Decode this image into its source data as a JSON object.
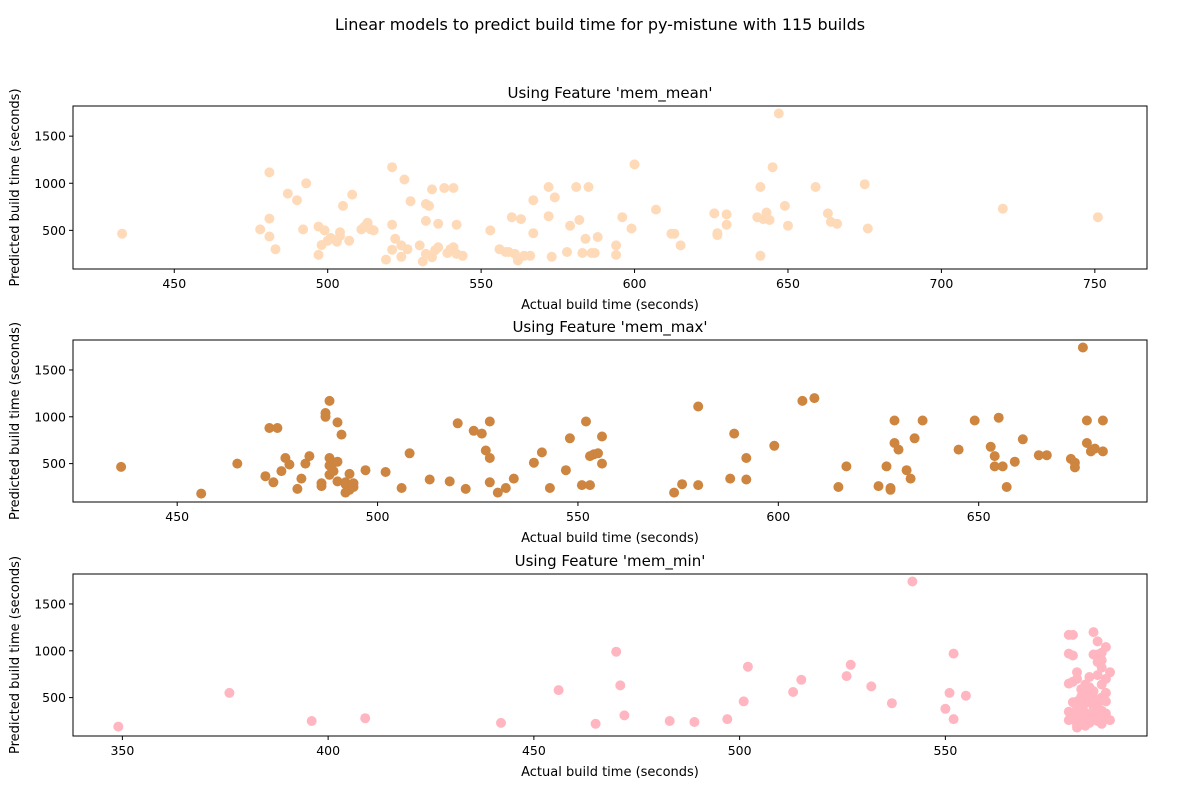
{
  "figure": {
    "title": "Linear models to predict build time for py-mistune with 115 builds"
  },
  "chart_data": [
    {
      "type": "scatter",
      "title": "Using Feature 'mem_mean'",
      "xlabel": "Actual build time (seconds)",
      "ylabel": "Predicted build time (seconds)",
      "color": "#ffdab9",
      "xlim": [
        417,
        767
      ],
      "ylim": [
        90,
        1820
      ],
      "xticks": [
        450,
        500,
        550,
        600,
        650,
        700,
        750
      ],
      "yticks": [
        500,
        1000,
        1500
      ],
      "points": [
        [
          433,
          465
        ],
        [
          478,
          510
        ],
        [
          481,
          1115
        ],
        [
          481,
          625
        ],
        [
          481,
          435
        ],
        [
          483,
          300
        ],
        [
          487,
          890
        ],
        [
          490,
          820
        ],
        [
          492,
          510
        ],
        [
          493,
          1000
        ],
        [
          497,
          240
        ],
        [
          497,
          540
        ],
        [
          498,
          345
        ],
        [
          499,
          500
        ],
        [
          500,
          390
        ],
        [
          501,
          420
        ],
        [
          503,
          380
        ],
        [
          504,
          480
        ],
        [
          504,
          440
        ],
        [
          505,
          760
        ],
        [
          507,
          390
        ],
        [
          508,
          880
        ],
        [
          511,
          510
        ],
        [
          512,
          540
        ],
        [
          513,
          580
        ],
        [
          514,
          510
        ],
        [
          515,
          500
        ],
        [
          519,
          190
        ],
        [
          521,
          1170
        ],
        [
          521,
          295
        ],
        [
          521,
          560
        ],
        [
          522,
          410
        ],
        [
          524,
          220
        ],
        [
          524,
          340
        ],
        [
          525,
          1040
        ],
        [
          526,
          300
        ],
        [
          527,
          810
        ],
        [
          530,
          340
        ],
        [
          531,
          170
        ],
        [
          532,
          250
        ],
        [
          532,
          780
        ],
        [
          532,
          600
        ],
        [
          533,
          760
        ],
        [
          534,
          215
        ],
        [
          534,
          935
        ],
        [
          535,
          290
        ],
        [
          536,
          570
        ],
        [
          536,
          320
        ],
        [
          538,
          950
        ],
        [
          539,
          260
        ],
        [
          540,
          300
        ],
        [
          541,
          320
        ],
        [
          541,
          950
        ],
        [
          542,
          560
        ],
        [
          542,
          250
        ],
        [
          544,
          230
        ],
        [
          553,
          500
        ],
        [
          556,
          300
        ],
        [
          558,
          270
        ],
        [
          559,
          270
        ],
        [
          560,
          640
        ],
        [
          561,
          250
        ],
        [
          562,
          180
        ],
        [
          563,
          620
        ],
        [
          564,
          230
        ],
        [
          566,
          230
        ],
        [
          567,
          470
        ],
        [
          567,
          820
        ],
        [
          572,
          650
        ],
        [
          572,
          960
        ],
        [
          573,
          220
        ],
        [
          574,
          850
        ],
        [
          578,
          270
        ],
        [
          579,
          550
        ],
        [
          581,
          960
        ],
        [
          582,
          610
        ],
        [
          583,
          260
        ],
        [
          584,
          410
        ],
        [
          585,
          960
        ],
        [
          586,
          260
        ],
        [
          587,
          260
        ],
        [
          588,
          430
        ],
        [
          594,
          340
        ],
        [
          594,
          240
        ],
        [
          596,
          640
        ],
        [
          599,
          520
        ],
        [
          600,
          1200
        ],
        [
          607,
          720
        ],
        [
          612,
          465
        ],
        [
          613,
          465
        ],
        [
          615,
          340
        ],
        [
          626,
          680
        ],
        [
          627,
          470
        ],
        [
          627,
          450
        ],
        [
          630,
          560
        ],
        [
          630,
          670
        ],
        [
          640,
          640
        ],
        [
          641,
          960
        ],
        [
          641,
          230
        ],
        [
          642,
          620
        ],
        [
          643,
          690
        ],
        [
          644,
          610
        ],
        [
          645,
          1170
        ],
        [
          647,
          1740
        ],
        [
          649,
          760
        ],
        [
          650,
          550
        ],
        [
          659,
          960
        ],
        [
          663,
          680
        ],
        [
          664,
          590
        ],
        [
          666,
          570
        ],
        [
          675,
          990
        ],
        [
          676,
          520
        ],
        [
          720,
          730
        ],
        [
          751,
          640
        ]
      ]
    },
    {
      "type": "scatter",
      "title": "Using Feature 'mem_max'",
      "xlabel": "Actual build time (seconds)",
      "ylabel": "Predicted build time (seconds)",
      "color": "#cd853f",
      "xlim": [
        424,
        692
      ],
      "ylim": [
        90,
        1820
      ],
      "xticks": [
        450,
        500,
        550,
        600,
        650
      ],
      "yticks": [
        500,
        1000,
        1500
      ],
      "points": [
        [
          436,
          465
        ],
        [
          456,
          180
        ],
        [
          465,
          500
        ],
        [
          472,
          365
        ],
        [
          473,
          880
        ],
        [
          474,
          300
        ],
        [
          475,
          880
        ],
        [
          476,
          420
        ],
        [
          477,
          560
        ],
        [
          478,
          490
        ],
        [
          480,
          230
        ],
        [
          481,
          340
        ],
        [
          482,
          500
        ],
        [
          483,
          580
        ],
        [
          486,
          290
        ],
        [
          486,
          260
        ],
        [
          487,
          1000
        ],
        [
          487,
          1040
        ],
        [
          488,
          380
        ],
        [
          488,
          560
        ],
        [
          488,
          480
        ],
        [
          488,
          1170
        ],
        [
          489,
          510
        ],
        [
          489,
          420
        ],
        [
          490,
          520
        ],
        [
          490,
          940
        ],
        [
          490,
          310
        ],
        [
          491,
          810
        ],
        [
          492,
          190
        ],
        [
          492,
          300
        ],
        [
          492,
          280
        ],
        [
          493,
          390
        ],
        [
          493,
          220
        ],
        [
          494,
          250
        ],
        [
          494,
          290
        ],
        [
          497,
          430
        ],
        [
          502,
          410
        ],
        [
          506,
          240
        ],
        [
          508,
          610
        ],
        [
          513,
          330
        ],
        [
          518,
          310
        ],
        [
          520,
          930
        ],
        [
          522,
          230
        ],
        [
          524,
          850
        ],
        [
          526,
          820
        ],
        [
          527,
          640
        ],
        [
          528,
          950
        ],
        [
          528,
          300
        ],
        [
          528,
          560
        ],
        [
          530,
          190
        ],
        [
          532,
          240
        ],
        [
          534,
          340
        ],
        [
          539,
          510
        ],
        [
          541,
          620
        ],
        [
          543,
          240
        ],
        [
          547,
          430
        ],
        [
          548,
          770
        ],
        [
          551,
          270
        ],
        [
          552,
          950
        ],
        [
          553,
          270
        ],
        [
          553,
          580
        ],
        [
          554,
          600
        ],
        [
          555,
          610
        ],
        [
          556,
          790
        ],
        [
          556,
          500
        ],
        [
          574,
          190
        ],
        [
          576,
          280
        ],
        [
          580,
          1110
        ],
        [
          580,
          270
        ],
        [
          588,
          340
        ],
        [
          589,
          820
        ],
        [
          592,
          330
        ],
        [
          592,
          560
        ],
        [
          599,
          690
        ],
        [
          606,
          1170
        ],
        [
          609,
          1200
        ],
        [
          615,
          250
        ],
        [
          617,
          470
        ],
        [
          625,
          260
        ],
        [
          627,
          470
        ],
        [
          628,
          220
        ],
        [
          628,
          240
        ],
        [
          629,
          720
        ],
        [
          629,
          960
        ],
        [
          630,
          650
        ],
        [
          632,
          430
        ],
        [
          633,
          340
        ],
        [
          634,
          770
        ],
        [
          636,
          960
        ],
        [
          645,
          650
        ],
        [
          649,
          960
        ],
        [
          653,
          680
        ],
        [
          654,
          470
        ],
        [
          654,
          580
        ],
        [
          655,
          990
        ],
        [
          656,
          470
        ],
        [
          657,
          250
        ],
        [
          659,
          520
        ],
        [
          661,
          760
        ],
        [
          665,
          590
        ],
        [
          667,
          590
        ],
        [
          673,
          550
        ],
        [
          674,
          510
        ],
        [
          674,
          460
        ],
        [
          676,
          1740
        ],
        [
          677,
          720
        ],
        [
          677,
          960
        ],
        [
          678,
          630
        ],
        [
          679,
          660
        ],
        [
          681,
          960
        ],
        [
          681,
          630
        ]
      ]
    },
    {
      "type": "scatter",
      "title": "Using Feature 'mem_min'",
      "xlabel": "Actual build time (seconds)",
      "ylabel": "Predicted build time (seconds)",
      "color": "#ffb6c1",
      "xlim": [
        338,
        599
      ],
      "ylim": [
        90,
        1820
      ],
      "xticks": [
        350,
        400,
        450,
        500,
        550
      ],
      "yticks": [
        500,
        1000,
        1500
      ],
      "points": [
        [
          349,
          190
        ],
        [
          376,
          550
        ],
        [
          396,
          250
        ],
        [
          409,
          280
        ],
        [
          442,
          230
        ],
        [
          456,
          580
        ],
        [
          465,
          220
        ],
        [
          470,
          990
        ],
        [
          471,
          630
        ],
        [
          472,
          310
        ],
        [
          483,
          250
        ],
        [
          489,
          240
        ],
        [
          497,
          270
        ],
        [
          501,
          460
        ],
        [
          502,
          830
        ],
        [
          513,
          560
        ],
        [
          515,
          690
        ],
        [
          526,
          730
        ],
        [
          527,
          850
        ],
        [
          532,
          620
        ],
        [
          537,
          440
        ],
        [
          542,
          1740
        ],
        [
          550,
          380
        ],
        [
          551,
          550
        ],
        [
          552,
          270
        ],
        [
          552,
          970
        ],
        [
          555,
          520
        ],
        [
          580,
          260
        ],
        [
          580,
          350
        ],
        [
          580,
          650
        ],
        [
          580,
          970
        ],
        [
          580,
          1170
        ],
        [
          581,
          670
        ],
        [
          581,
          450
        ],
        [
          581,
          300
        ],
        [
          581,
          950
        ],
        [
          581,
          1170
        ],
        [
          582,
          250
        ],
        [
          582,
          460
        ],
        [
          582,
          700
        ],
        [
          582,
          380
        ],
        [
          582,
          210
        ],
        [
          582,
          770
        ],
        [
          582,
          180
        ],
        [
          583,
          590
        ],
        [
          583,
          330
        ],
        [
          583,
          250
        ],
        [
          583,
          420
        ],
        [
          583,
          280
        ],
        [
          583,
          510
        ],
        [
          583,
          300
        ],
        [
          584,
          200
        ],
        [
          584,
          440
        ],
        [
          584,
          640
        ],
        [
          584,
          340
        ],
        [
          584,
          560
        ],
        [
          585,
          230
        ],
        [
          585,
          610
        ],
        [
          585,
          720
        ],
        [
          585,
          270
        ],
        [
          585,
          480
        ],
        [
          586,
          340
        ],
        [
          586,
          500
        ],
        [
          586,
          960
        ],
        [
          586,
          400
        ],
        [
          586,
          570
        ],
        [
          586,
          1200
        ],
        [
          587,
          880
        ],
        [
          587,
          1100
        ],
        [
          587,
          250
        ],
        [
          587,
          740
        ],
        [
          587,
          960
        ],
        [
          587,
          420
        ],
        [
          588,
          300
        ],
        [
          588,
          500
        ],
        [
          588,
          640
        ],
        [
          588,
          900
        ],
        [
          588,
          980
        ],
        [
          588,
          360
        ],
        [
          588,
          220
        ],
        [
          588,
          820
        ],
        [
          589,
          700
        ],
        [
          589,
          550
        ],
        [
          589,
          460
        ],
        [
          589,
          1040
        ],
        [
          589,
          330
        ],
        [
          590,
          770
        ],
        [
          590,
          260
        ]
      ]
    }
  ]
}
